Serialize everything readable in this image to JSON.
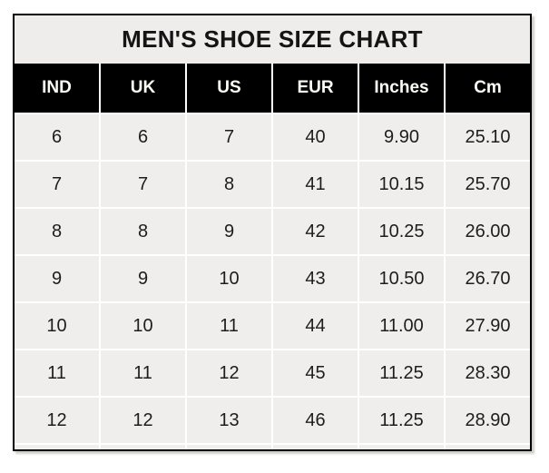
{
  "chart_data": {
    "type": "table",
    "title": "MEN'S SHOE SIZE CHART",
    "columns": [
      "IND",
      "UK",
      "US",
      "EUR",
      "Inches",
      "Cm"
    ],
    "rows": [
      [
        "6",
        "6",
        "7",
        "40",
        "9.90",
        "25.10"
      ],
      [
        "7",
        "7",
        "8",
        "41",
        "10.15",
        "25.70"
      ],
      [
        "8",
        "8",
        "9",
        "42",
        "10.25",
        "26.00"
      ],
      [
        "9",
        "9",
        "10",
        "43",
        "10.50",
        "26.70"
      ],
      [
        "10",
        "10",
        "11",
        "44",
        "11.00",
        "27.90"
      ],
      [
        "11",
        "11",
        "12",
        "45",
        "11.25",
        "28.30"
      ],
      [
        "12",
        "12",
        "13",
        "46",
        "11.25",
        "28.90"
      ]
    ],
    "layout": {
      "grid": "white separators between cells",
      "legend": "none",
      "header_style": "black background, white bold text",
      "title_position": "top center"
    }
  },
  "colors": {
    "border": "#000000",
    "header_bg": "#000000",
    "header_text": "#fdfcf5",
    "title_bg": "#eeedec",
    "cell_bg": "#efeeec",
    "body_text": "#1d1d1d",
    "separator": "#ffffff",
    "shadow": "#cfcecb"
  }
}
